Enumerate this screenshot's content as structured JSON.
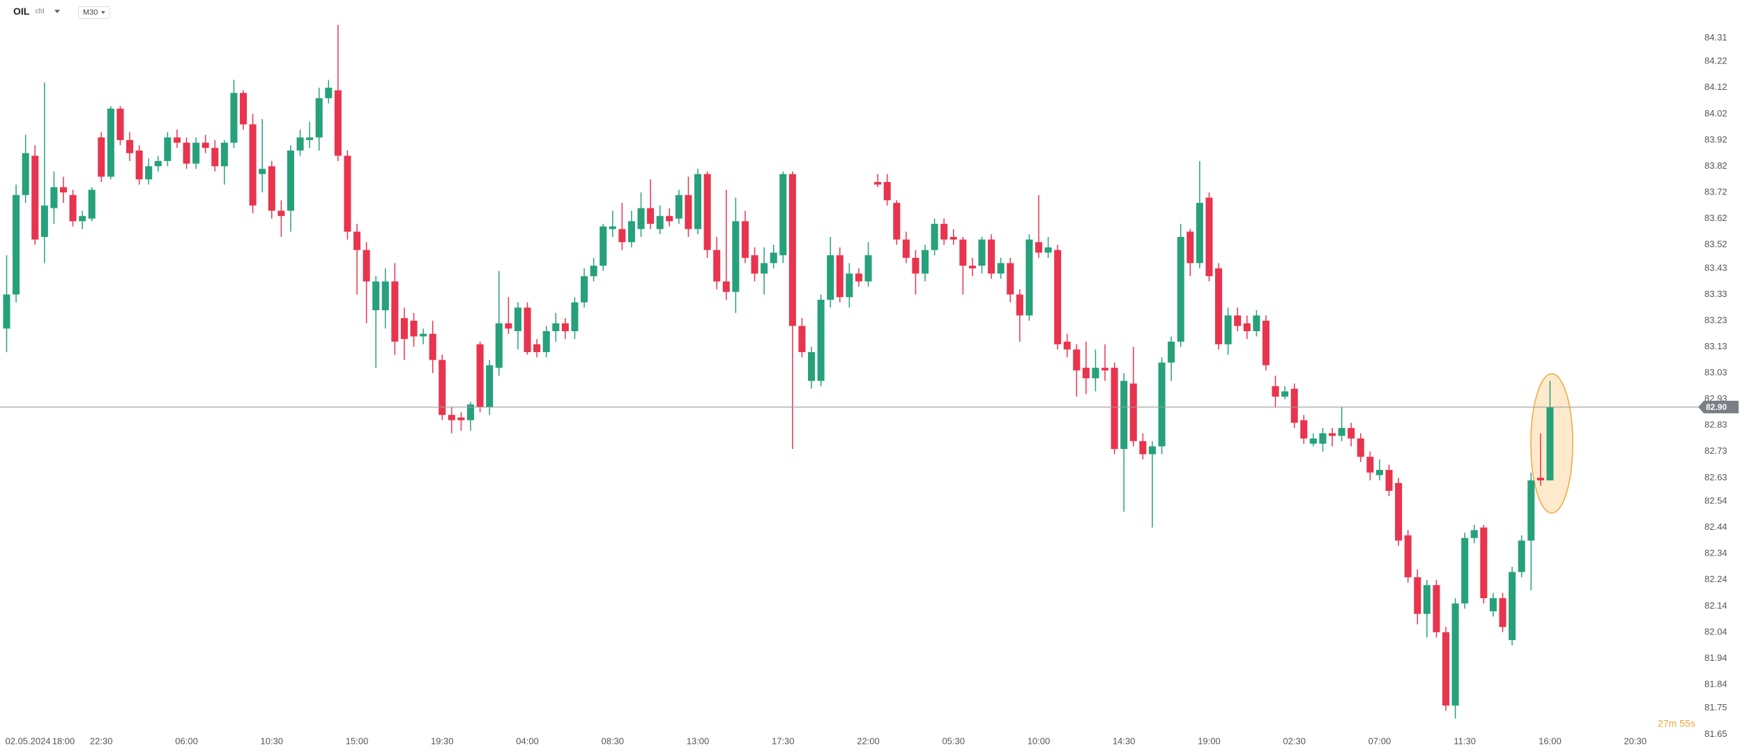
{
  "header": {
    "symbol": "OIL",
    "kind": "cfd",
    "interval": "M30"
  },
  "chart_data": {
    "type": "candlestick",
    "up_color": "#26a17b",
    "down_color": "#e8344e",
    "xlim": [
      -0.7,
      176
    ],
    "ylim": [
      81.571,
      84.455
    ],
    "xticks": [
      {
        "value": 0,
        "label": "02.05.2024"
      },
      {
        "value": 6,
        "label": "18:00"
      },
      {
        "value": 10,
        "label": "22:30"
      },
      {
        "value": 19,
        "label": "06:00"
      },
      {
        "value": 28,
        "label": "10:30"
      },
      {
        "value": 37,
        "label": "15:00"
      },
      {
        "value": 46,
        "label": "19:30"
      },
      {
        "value": 55,
        "label": "04:00"
      },
      {
        "value": 64,
        "label": "08:30"
      },
      {
        "value": 73,
        "label": "13:00"
      },
      {
        "value": 82,
        "label": "17:30"
      },
      {
        "value": 91,
        "label": "22:00"
      },
      {
        "value": 100,
        "label": "05:30"
      },
      {
        "value": 109,
        "label": "10:00"
      },
      {
        "value": 118,
        "label": "14:30"
      },
      {
        "value": 127,
        "label": "19:00"
      },
      {
        "value": 136,
        "label": "02:30"
      },
      {
        "value": 145,
        "label": "07:00"
      },
      {
        "value": 154,
        "label": "11:30"
      },
      {
        "value": 163,
        "label": "16:00"
      },
      {
        "value": 172,
        "label": "20:30"
      }
    ],
    "yticks": [
      84.31,
      84.22,
      84.12,
      84.02,
      83.92,
      83.82,
      83.72,
      83.62,
      83.52,
      83.43,
      83.33,
      83.23,
      83.13,
      83.03,
      82.93,
      82.83,
      82.73,
      82.63,
      82.54,
      82.44,
      82.34,
      82.24,
      82.14,
      82.04,
      81.94,
      81.84,
      81.75,
      81.65
    ],
    "last_price": {
      "value": 82.9,
      "label": "82.90"
    },
    "countdown": "27m 55s",
    "ohlc": [
      [
        83.2,
        83.48,
        83.11,
        83.33
      ],
      [
        83.33,
        83.75,
        83.3,
        83.71
      ],
      [
        83.71,
        83.94,
        83.68,
        83.87
      ],
      [
        83.86,
        83.9,
        83.52,
        83.54
      ],
      [
        83.55,
        84.14,
        83.45,
        83.67
      ],
      [
        83.66,
        83.8,
        83.6,
        83.74
      ],
      [
        83.74,
        83.78,
        83.68,
        83.72
      ],
      [
        83.71,
        83.73,
        83.59,
        83.61
      ],
      [
        83.61,
        83.65,
        83.58,
        83.63
      ],
      [
        83.62,
        83.74,
        83.61,
        83.73
      ],
      [
        83.93,
        83.95,
        83.76,
        83.78
      ],
      [
        83.78,
        84.05,
        83.77,
        84.04
      ],
      [
        84.04,
        84.05,
        83.9,
        83.92
      ],
      [
        83.92,
        83.95,
        83.84,
        83.87
      ],
      [
        83.88,
        83.9,
        83.75,
        83.77
      ],
      [
        83.77,
        83.85,
        83.75,
        83.82
      ],
      [
        83.82,
        83.86,
        83.8,
        83.84
      ],
      [
        83.84,
        83.95,
        83.82,
        83.93
      ],
      [
        83.93,
        83.96,
        83.89,
        83.91
      ],
      [
        83.91,
        83.93,
        83.81,
        83.83
      ],
      [
        83.83,
        83.93,
        83.81,
        83.91
      ],
      [
        83.91,
        83.94,
        83.87,
        83.89
      ],
      [
        83.89,
        83.92,
        83.8,
        83.82
      ],
      [
        83.82,
        83.92,
        83.75,
        83.91
      ],
      [
        83.91,
        84.15,
        83.89,
        84.1
      ],
      [
        84.1,
        84.11,
        83.96,
        83.98
      ],
      [
        83.98,
        84.02,
        83.64,
        83.67
      ],
      [
        83.79,
        84.0,
        83.72,
        83.81
      ],
      [
        83.82,
        83.84,
        83.62,
        83.65
      ],
      [
        83.65,
        83.69,
        83.55,
        83.63
      ],
      [
        83.65,
        83.9,
        83.57,
        83.88
      ],
      [
        83.88,
        83.96,
        83.86,
        83.93
      ],
      [
        83.92,
        83.99,
        83.89,
        83.93
      ],
      [
        83.93,
        84.12,
        83.88,
        84.08
      ],
      [
        84.08,
        84.15,
        84.06,
        84.12
      ],
      [
        84.11,
        84.36,
        83.84,
        83.86
      ],
      [
        83.86,
        83.88,
        83.54,
        83.57
      ],
      [
        83.57,
        83.6,
        83.33,
        83.5
      ],
      [
        83.5,
        83.53,
        83.22,
        83.38
      ],
      [
        83.27,
        83.4,
        83.05,
        83.38
      ],
      [
        83.27,
        83.43,
        83.2,
        83.38
      ],
      [
        83.38,
        83.45,
        83.1,
        83.15
      ],
      [
        83.24,
        83.28,
        83.08,
        83.16
      ],
      [
        83.23,
        83.26,
        83.13,
        83.17
      ],
      [
        83.17,
        83.2,
        83.14,
        83.18
      ],
      [
        83.18,
        83.23,
        83.03,
        83.08
      ],
      [
        83.08,
        83.1,
        82.85,
        82.87
      ],
      [
        82.87,
        82.9,
        82.8,
        82.85
      ],
      [
        82.86,
        82.88,
        82.81,
        82.85
      ],
      [
        82.85,
        82.92,
        82.81,
        82.91
      ],
      [
        83.14,
        83.15,
        82.88,
        82.9
      ],
      [
        82.9,
        83.08,
        82.87,
        83.06
      ],
      [
        83.05,
        83.42,
        83.02,
        83.22
      ],
      [
        83.22,
        83.32,
        83.18,
        83.2
      ],
      [
        83.19,
        83.3,
        83.12,
        83.28
      ],
      [
        83.28,
        83.3,
        83.1,
        83.11
      ],
      [
        83.14,
        83.16,
        83.09,
        83.11
      ],
      [
        83.11,
        83.21,
        83.09,
        83.19
      ],
      [
        83.19,
        83.26,
        83.15,
        83.22
      ],
      [
        83.22,
        83.24,
        83.16,
        83.19
      ],
      [
        83.19,
        83.32,
        83.16,
        83.3
      ],
      [
        83.3,
        83.43,
        83.28,
        83.4
      ],
      [
        83.4,
        83.47,
        83.38,
        83.44
      ],
      [
        83.44,
        83.6,
        83.42,
        83.59
      ],
      [
        83.58,
        83.65,
        83.55,
        83.59
      ],
      [
        83.58,
        83.68,
        83.5,
        83.53
      ],
      [
        83.53,
        83.65,
        83.51,
        83.61
      ],
      [
        83.58,
        83.72,
        83.55,
        83.66
      ],
      [
        83.66,
        83.77,
        83.58,
        83.6
      ],
      [
        83.58,
        83.67,
        83.56,
        83.63
      ],
      [
        83.63,
        83.66,
        83.59,
        83.61
      ],
      [
        83.62,
        83.73,
        83.6,
        83.71
      ],
      [
        83.71,
        83.78,
        83.55,
        83.58
      ],
      [
        83.58,
        83.81,
        83.56,
        83.79
      ],
      [
        83.79,
        83.8,
        83.47,
        83.5
      ],
      [
        83.5,
        83.55,
        83.35,
        83.38
      ],
      [
        83.38,
        83.73,
        83.31,
        83.34
      ],
      [
        83.34,
        83.7,
        83.26,
        83.61
      ],
      [
        83.61,
        83.65,
        83.45,
        83.47
      ],
      [
        83.48,
        83.51,
        83.38,
        83.41
      ],
      [
        83.41,
        83.51,
        83.33,
        83.45
      ],
      [
        83.45,
        83.52,
        83.43,
        83.49
      ],
      [
        83.48,
        83.8,
        83.45,
        83.79
      ],
      [
        83.79,
        83.8,
        82.74,
        83.21
      ],
      [
        83.21,
        83.24,
        83.09,
        83.11
      ],
      [
        83.0,
        83.13,
        82.97,
        83.11
      ],
      [
        83.0,
        83.33,
        82.98,
        83.31
      ],
      [
        83.31,
        83.55,
        83.28,
        83.48
      ],
      [
        83.48,
        83.51,
        83.3,
        83.32
      ],
      [
        83.32,
        83.45,
        83.28,
        83.41
      ],
      [
        83.41,
        83.43,
        83.36,
        83.38
      ],
      [
        83.38,
        83.53,
        83.36,
        83.48
      ],
      [
        83.76,
        83.79,
        83.74,
        83.75
      ],
      [
        83.76,
        83.79,
        83.67,
        83.69
      ],
      [
        83.68,
        83.69,
        83.52,
        83.54
      ],
      [
        83.54,
        83.57,
        83.45,
        83.47
      ],
      [
        83.47,
        83.5,
        83.33,
        83.41
      ],
      [
        83.41,
        83.52,
        83.38,
        83.5
      ],
      [
        83.5,
        83.62,
        83.48,
        83.6
      ],
      [
        83.6,
        83.62,
        83.52,
        83.54
      ],
      [
        83.55,
        83.58,
        83.52,
        83.54
      ],
      [
        83.54,
        83.55,
        83.33,
        83.44
      ],
      [
        83.44,
        83.47,
        83.4,
        83.43
      ],
      [
        83.44,
        83.55,
        83.41,
        83.54
      ],
      [
        83.54,
        83.56,
        83.39,
        83.41
      ],
      [
        83.41,
        83.47,
        83.39,
        83.45
      ],
      [
        83.45,
        83.47,
        83.3,
        83.33
      ],
      [
        83.33,
        83.35,
        83.15,
        83.25
      ],
      [
        83.25,
        83.56,
        83.23,
        83.54
      ],
      [
        83.53,
        83.71,
        83.47,
        83.49
      ],
      [
        83.49,
        83.55,
        83.47,
        83.51
      ],
      [
        83.5,
        83.52,
        83.12,
        83.14
      ],
      [
        83.15,
        83.18,
        83.09,
        83.12
      ],
      [
        83.12,
        83.14,
        82.94,
        83.04
      ],
      [
        83.05,
        83.15,
        82.95,
        83.01
      ],
      [
        83.01,
        83.12,
        82.96,
        83.05
      ],
      [
        83.05,
        83.14,
        83.0,
        83.04
      ],
      [
        83.05,
        83.07,
        82.72,
        82.74
      ],
      [
        82.74,
        83.03,
        82.5,
        83.0
      ],
      [
        82.99,
        83.13,
        82.75,
        82.77
      ],
      [
        82.77,
        82.8,
        82.7,
        82.72
      ],
      [
        82.72,
        82.77,
        82.44,
        82.75
      ],
      [
        82.75,
        83.09,
        82.72,
        83.07
      ],
      [
        83.07,
        83.17,
        83.0,
        83.15
      ],
      [
        83.15,
        83.6,
        83.13,
        83.55
      ],
      [
        83.57,
        83.58,
        83.4,
        83.45
      ],
      [
        83.45,
        83.84,
        83.43,
        83.68
      ],
      [
        83.7,
        83.72,
        83.38,
        83.4
      ],
      [
        83.43,
        83.45,
        83.12,
        83.14
      ],
      [
        83.14,
        83.28,
        83.1,
        83.25
      ],
      [
        83.25,
        83.28,
        83.19,
        83.21
      ],
      [
        83.22,
        83.25,
        83.16,
        83.19
      ],
      [
        83.19,
        83.27,
        83.17,
        83.25
      ],
      [
        83.23,
        83.25,
        83.04,
        83.06
      ],
      [
        82.98,
        83.02,
        82.9,
        82.94
      ],
      [
        82.94,
        82.98,
        82.93,
        82.96
      ],
      [
        82.97,
        82.99,
        82.82,
        82.84
      ],
      [
        82.85,
        82.87,
        82.76,
        82.78
      ],
      [
        82.76,
        82.8,
        82.75,
        82.78
      ],
      [
        82.76,
        82.82,
        82.73,
        82.8
      ],
      [
        82.8,
        82.82,
        82.75,
        82.79
      ],
      [
        82.79,
        82.9,
        82.77,
        82.82
      ],
      [
        82.82,
        82.84,
        82.75,
        82.78
      ],
      [
        82.78,
        82.8,
        82.69,
        82.71
      ],
      [
        82.71,
        82.73,
        82.62,
        82.65
      ],
      [
        82.64,
        82.7,
        82.62,
        82.66
      ],
      [
        82.66,
        82.68,
        82.56,
        82.58
      ],
      [
        82.61,
        82.63,
        82.37,
        82.39
      ],
      [
        82.41,
        82.43,
        82.23,
        82.25
      ],
      [
        82.25,
        82.28,
        82.07,
        82.11
      ],
      [
        82.11,
        82.24,
        82.02,
        82.22
      ],
      [
        82.22,
        82.24,
        82.02,
        82.04
      ],
      [
        82.04,
        82.06,
        81.74,
        81.76
      ],
      [
        81.76,
        82.17,
        81.71,
        82.15
      ],
      [
        82.15,
        82.42,
        82.13,
        82.4
      ],
      [
        82.4,
        82.45,
        82.38,
        82.43
      ],
      [
        82.44,
        82.45,
        82.15,
        82.17
      ],
      [
        82.12,
        82.19,
        82.1,
        82.17
      ],
      [
        82.17,
        82.19,
        82.04,
        82.06
      ],
      [
        82.01,
        82.29,
        81.99,
        82.27
      ],
      [
        82.27,
        82.41,
        82.25,
        82.39
      ],
      [
        82.39,
        82.65,
        82.2,
        82.62
      ],
      [
        82.63,
        82.8,
        82.6,
        82.62
      ],
      [
        82.62,
        83.0,
        82.62,
        82.9
      ]
    ]
  }
}
